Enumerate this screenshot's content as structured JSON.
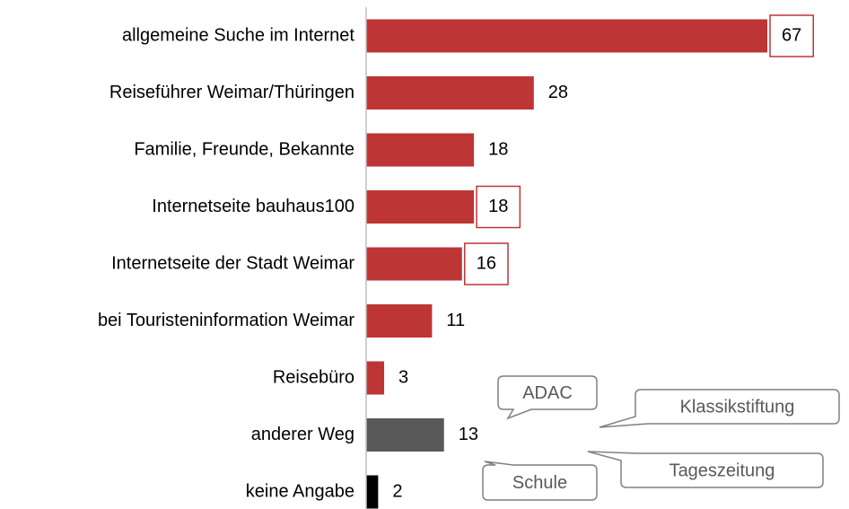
{
  "chart_data": {
    "type": "hbar",
    "categories": [
      "allgemeine Suche im Internet",
      "Reiseführer Weimar/Thüringen",
      "Familie, Freunde, Bekannte",
      "Internetseite bauhaus100",
      "Internetseite der Stadt Weimar",
      "bei Touristeninformation Weimar",
      "Reisebüro",
      "anderer Weg",
      "keine Angabe"
    ],
    "values": [
      67,
      28,
      18,
      18,
      16,
      11,
      3,
      13,
      2
    ],
    "colors": [
      "#be3536",
      "#be3536",
      "#be3536",
      "#be3536",
      "#be3536",
      "#be3536",
      "#be3536",
      "#595959",
      "#000000"
    ],
    "highlighted": [
      true,
      false,
      false,
      true,
      true,
      false,
      false,
      false,
      false
    ],
    "xlim": [
      0,
      70
    ],
    "annotations": [
      "ADAC",
      "Klassikstiftung",
      "Tageszeitung",
      "Schule"
    ]
  }
}
